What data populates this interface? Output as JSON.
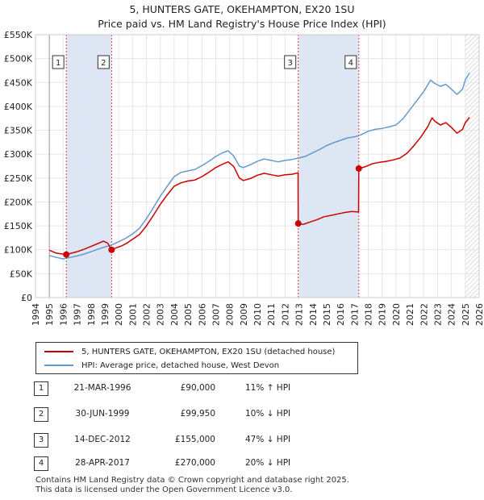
{
  "chart_data": {
    "type": "line",
    "title": "5, HUNTERS GATE, OKEHAMPTON, EX20 1SU",
    "subtitle": "Price paid vs. HM Land Registry's House Price Index (HPI)",
    "xlim": [
      1994,
      2026
    ],
    "ylim": [
      0,
      550000
    ],
    "x_ticks": [
      "1994",
      "1995",
      "1996",
      "1997",
      "1998",
      "1999",
      "2000",
      "2001",
      "2002",
      "2003",
      "2004",
      "2005",
      "2006",
      "2007",
      "2008",
      "2009",
      "2010",
      "2011",
      "2012",
      "2013",
      "2014",
      "2015",
      "2016",
      "2017",
      "2018",
      "2019",
      "2020",
      "2021",
      "2022",
      "2023",
      "2024",
      "2025",
      "2026"
    ],
    "y_ticks": [
      {
        "value": 0,
        "label": "£0"
      },
      {
        "value": 50000,
        "label": "£50K"
      },
      {
        "value": 100000,
        "label": "£100K"
      },
      {
        "value": 150000,
        "label": "£150K"
      },
      {
        "value": 200000,
        "label": "£200K"
      },
      {
        "value": 250000,
        "label": "£250K"
      },
      {
        "value": 300000,
        "label": "£300K"
      },
      {
        "value": 350000,
        "label": "£350K"
      },
      {
        "value": 400000,
        "label": "£400K"
      },
      {
        "value": 450000,
        "label": "£450K"
      },
      {
        "value": 500000,
        "label": "£500K"
      },
      {
        "value": 550000,
        "label": "£550K"
      }
    ],
    "series": [
      {
        "name": "5, HUNTERS GATE, OKEHAMPTON, EX20 1SU (detached house)",
        "color": "#cc0000",
        "points": [
          [
            1995.0,
            99000
          ],
          [
            1995.5,
            93000
          ],
          [
            1996.0,
            91000
          ],
          [
            1996.22,
            90000
          ],
          [
            1996.6,
            93000
          ],
          [
            1997.0,
            96000
          ],
          [
            1997.5,
            101000
          ],
          [
            1998.0,
            107000
          ],
          [
            1998.5,
            113000
          ],
          [
            1998.9,
            118000
          ],
          [
            1999.2,
            114000
          ],
          [
            1999.49,
            99950
          ],
          [
            1999.8,
            104000
          ],
          [
            2000.2,
            108000
          ],
          [
            2000.6,
            114000
          ],
          [
            2001.0,
            122000
          ],
          [
            2001.5,
            132000
          ],
          [
            2002.0,
            150000
          ],
          [
            2002.5,
            172000
          ],
          [
            2003.0,
            195000
          ],
          [
            2003.5,
            215000
          ],
          [
            2004.0,
            233000
          ],
          [
            2004.5,
            240000
          ],
          [
            2005.0,
            244000
          ],
          [
            2005.5,
            246000
          ],
          [
            2006.0,
            253000
          ],
          [
            2006.5,
            262000
          ],
          [
            2007.0,
            272000
          ],
          [
            2007.5,
            279000
          ],
          [
            2007.9,
            284000
          ],
          [
            2008.3,
            274000
          ],
          [
            2008.7,
            250000
          ],
          [
            2009.0,
            245000
          ],
          [
            2009.5,
            249000
          ],
          [
            2010.0,
            256000
          ],
          [
            2010.5,
            260000
          ],
          [
            2011.0,
            257000
          ],
          [
            2011.5,
            254000
          ],
          [
            2012.0,
            257000
          ],
          [
            2012.5,
            258000
          ],
          [
            2012.94,
            261000
          ],
          [
            2012.95,
            155000
          ],
          [
            2013.3,
            153000
          ],
          [
            2013.8,
            158000
          ],
          [
            2014.3,
            163000
          ],
          [
            2014.8,
            169000
          ],
          [
            2015.3,
            172000
          ],
          [
            2015.8,
            175000
          ],
          [
            2016.3,
            178000
          ],
          [
            2016.8,
            180000
          ],
          [
            2017.3,
            179000
          ],
          [
            2017.32,
            270000
          ],
          [
            2017.8,
            274000
          ],
          [
            2018.3,
            280000
          ],
          [
            2018.8,
            283000
          ],
          [
            2019.3,
            285000
          ],
          [
            2019.8,
            288000
          ],
          [
            2020.3,
            292000
          ],
          [
            2020.8,
            302000
          ],
          [
            2021.3,
            318000
          ],
          [
            2021.8,
            336000
          ],
          [
            2022.3,
            358000
          ],
          [
            2022.6,
            376000
          ],
          [
            2022.8,
            369000
          ],
          [
            2023.2,
            361000
          ],
          [
            2023.6,
            366000
          ],
          [
            2024.0,
            356000
          ],
          [
            2024.4,
            344000
          ],
          [
            2024.8,
            352000
          ],
          [
            2025.0,
            366000
          ],
          [
            2025.3,
            377000
          ]
        ]
      },
      {
        "name": "HPI: Average price, detached house, West Devon",
        "color": "#6699cc",
        "points": [
          [
            1995.0,
            88000
          ],
          [
            1995.5,
            84000
          ],
          [
            1996.0,
            81000
          ],
          [
            1996.5,
            84000
          ],
          [
            1997.0,
            87000
          ],
          [
            1997.5,
            91000
          ],
          [
            1998.0,
            96000
          ],
          [
            1998.5,
            101000
          ],
          [
            1999.0,
            106000
          ],
          [
            1999.5,
            110000
          ],
          [
            2000.0,
            117000
          ],
          [
            2000.5,
            124000
          ],
          [
            2001.0,
            133000
          ],
          [
            2001.5,
            145000
          ],
          [
            2002.0,
            165000
          ],
          [
            2002.5,
            188000
          ],
          [
            2003.0,
            212000
          ],
          [
            2003.5,
            233000
          ],
          [
            2004.0,
            253000
          ],
          [
            2004.5,
            262000
          ],
          [
            2005.0,
            265000
          ],
          [
            2005.5,
            268000
          ],
          [
            2006.0,
            276000
          ],
          [
            2006.5,
            285000
          ],
          [
            2007.0,
            295000
          ],
          [
            2007.5,
            303000
          ],
          [
            2007.9,
            307000
          ],
          [
            2008.3,
            296000
          ],
          [
            2008.7,
            275000
          ],
          [
            2009.0,
            272000
          ],
          [
            2009.5,
            278000
          ],
          [
            2010.0,
            285000
          ],
          [
            2010.5,
            290000
          ],
          [
            2011.0,
            287000
          ],
          [
            2011.5,
            284000
          ],
          [
            2012.0,
            287000
          ],
          [
            2012.5,
            289000
          ],
          [
            2013.0,
            292000
          ],
          [
            2013.5,
            296000
          ],
          [
            2014.0,
            303000
          ],
          [
            2014.5,
            310000
          ],
          [
            2015.0,
            318000
          ],
          [
            2015.5,
            324000
          ],
          [
            2016.0,
            329000
          ],
          [
            2016.5,
            334000
          ],
          [
            2017.0,
            336000
          ],
          [
            2017.5,
            341000
          ],
          [
            2018.0,
            348000
          ],
          [
            2018.5,
            352000
          ],
          [
            2019.0,
            354000
          ],
          [
            2019.5,
            357000
          ],
          [
            2020.0,
            361000
          ],
          [
            2020.5,
            374000
          ],
          [
            2021.0,
            393000
          ],
          [
            2021.5,
            412000
          ],
          [
            2022.0,
            431000
          ],
          [
            2022.5,
            455000
          ],
          [
            2022.8,
            448000
          ],
          [
            2023.2,
            442000
          ],
          [
            2023.6,
            446000
          ],
          [
            2024.0,
            436000
          ],
          [
            2024.4,
            425000
          ],
          [
            2024.8,
            436000
          ],
          [
            2025.0,
            455000
          ],
          [
            2025.3,
            470000
          ]
        ]
      }
    ],
    "sales": [
      {
        "num": "1",
        "x": 1996.22,
        "price_value": 90000,
        "date": "21-MAR-1996",
        "price": "£90,000",
        "hpi": "11% ↑ HPI"
      },
      {
        "num": "2",
        "x": 1999.49,
        "price_value": 99950,
        "date": "30-JUN-1999",
        "price": "£99,950",
        "hpi": "10% ↓ HPI"
      },
      {
        "num": "3",
        "x": 2012.95,
        "price_value": 155000,
        "date": "14-DEC-2012",
        "price": "£155,000",
        "hpi": "47% ↓ HPI"
      },
      {
        "num": "4",
        "x": 2017.32,
        "price_value": 270000,
        "date": "28-APR-2017",
        "price": "£270,000",
        "hpi": "20% ↓ HPI"
      }
    ],
    "shaded_periods": [
      [
        1996.22,
        1999.49
      ],
      [
        2012.95,
        2017.32
      ]
    ],
    "legend_position": "below"
  },
  "footer": {
    "line1": "Contains HM Land Registry data © Crown copyright and database right 2025.",
    "line2": "This data is licensed under the Open Government Licence v3.0."
  }
}
